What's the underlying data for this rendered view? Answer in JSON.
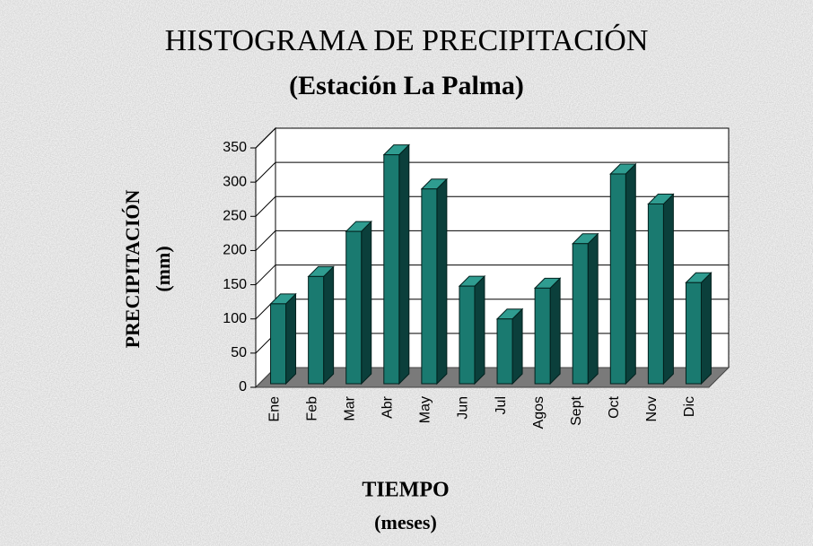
{
  "chart_data": {
    "type": "bar3d",
    "title": "HISTOGRAMA DE PRECIPITACIÓN",
    "subtitle": "(Estación La Palma)",
    "ylabel": "PRECIPITACIÓN",
    "ylabel_units": "(mm)",
    "xlabel": "TIEMPO",
    "xlabel_units": "(meses)",
    "categories": [
      "Ene",
      "Feb",
      "Mar",
      "Abr",
      "May",
      "Jun",
      "Jul",
      "Agos",
      "Sept",
      "Oct",
      "Nov",
      "Dic"
    ],
    "values": [
      122,
      162,
      228,
      340,
      290,
      148,
      100,
      145,
      210,
      312,
      268,
      153
    ],
    "color": "#1a7a70",
    "ylim": [
      0,
      350
    ],
    "yticks": [
      0,
      50,
      100,
      150,
      200,
      250,
      300,
      350
    ],
    "grid": true
  }
}
